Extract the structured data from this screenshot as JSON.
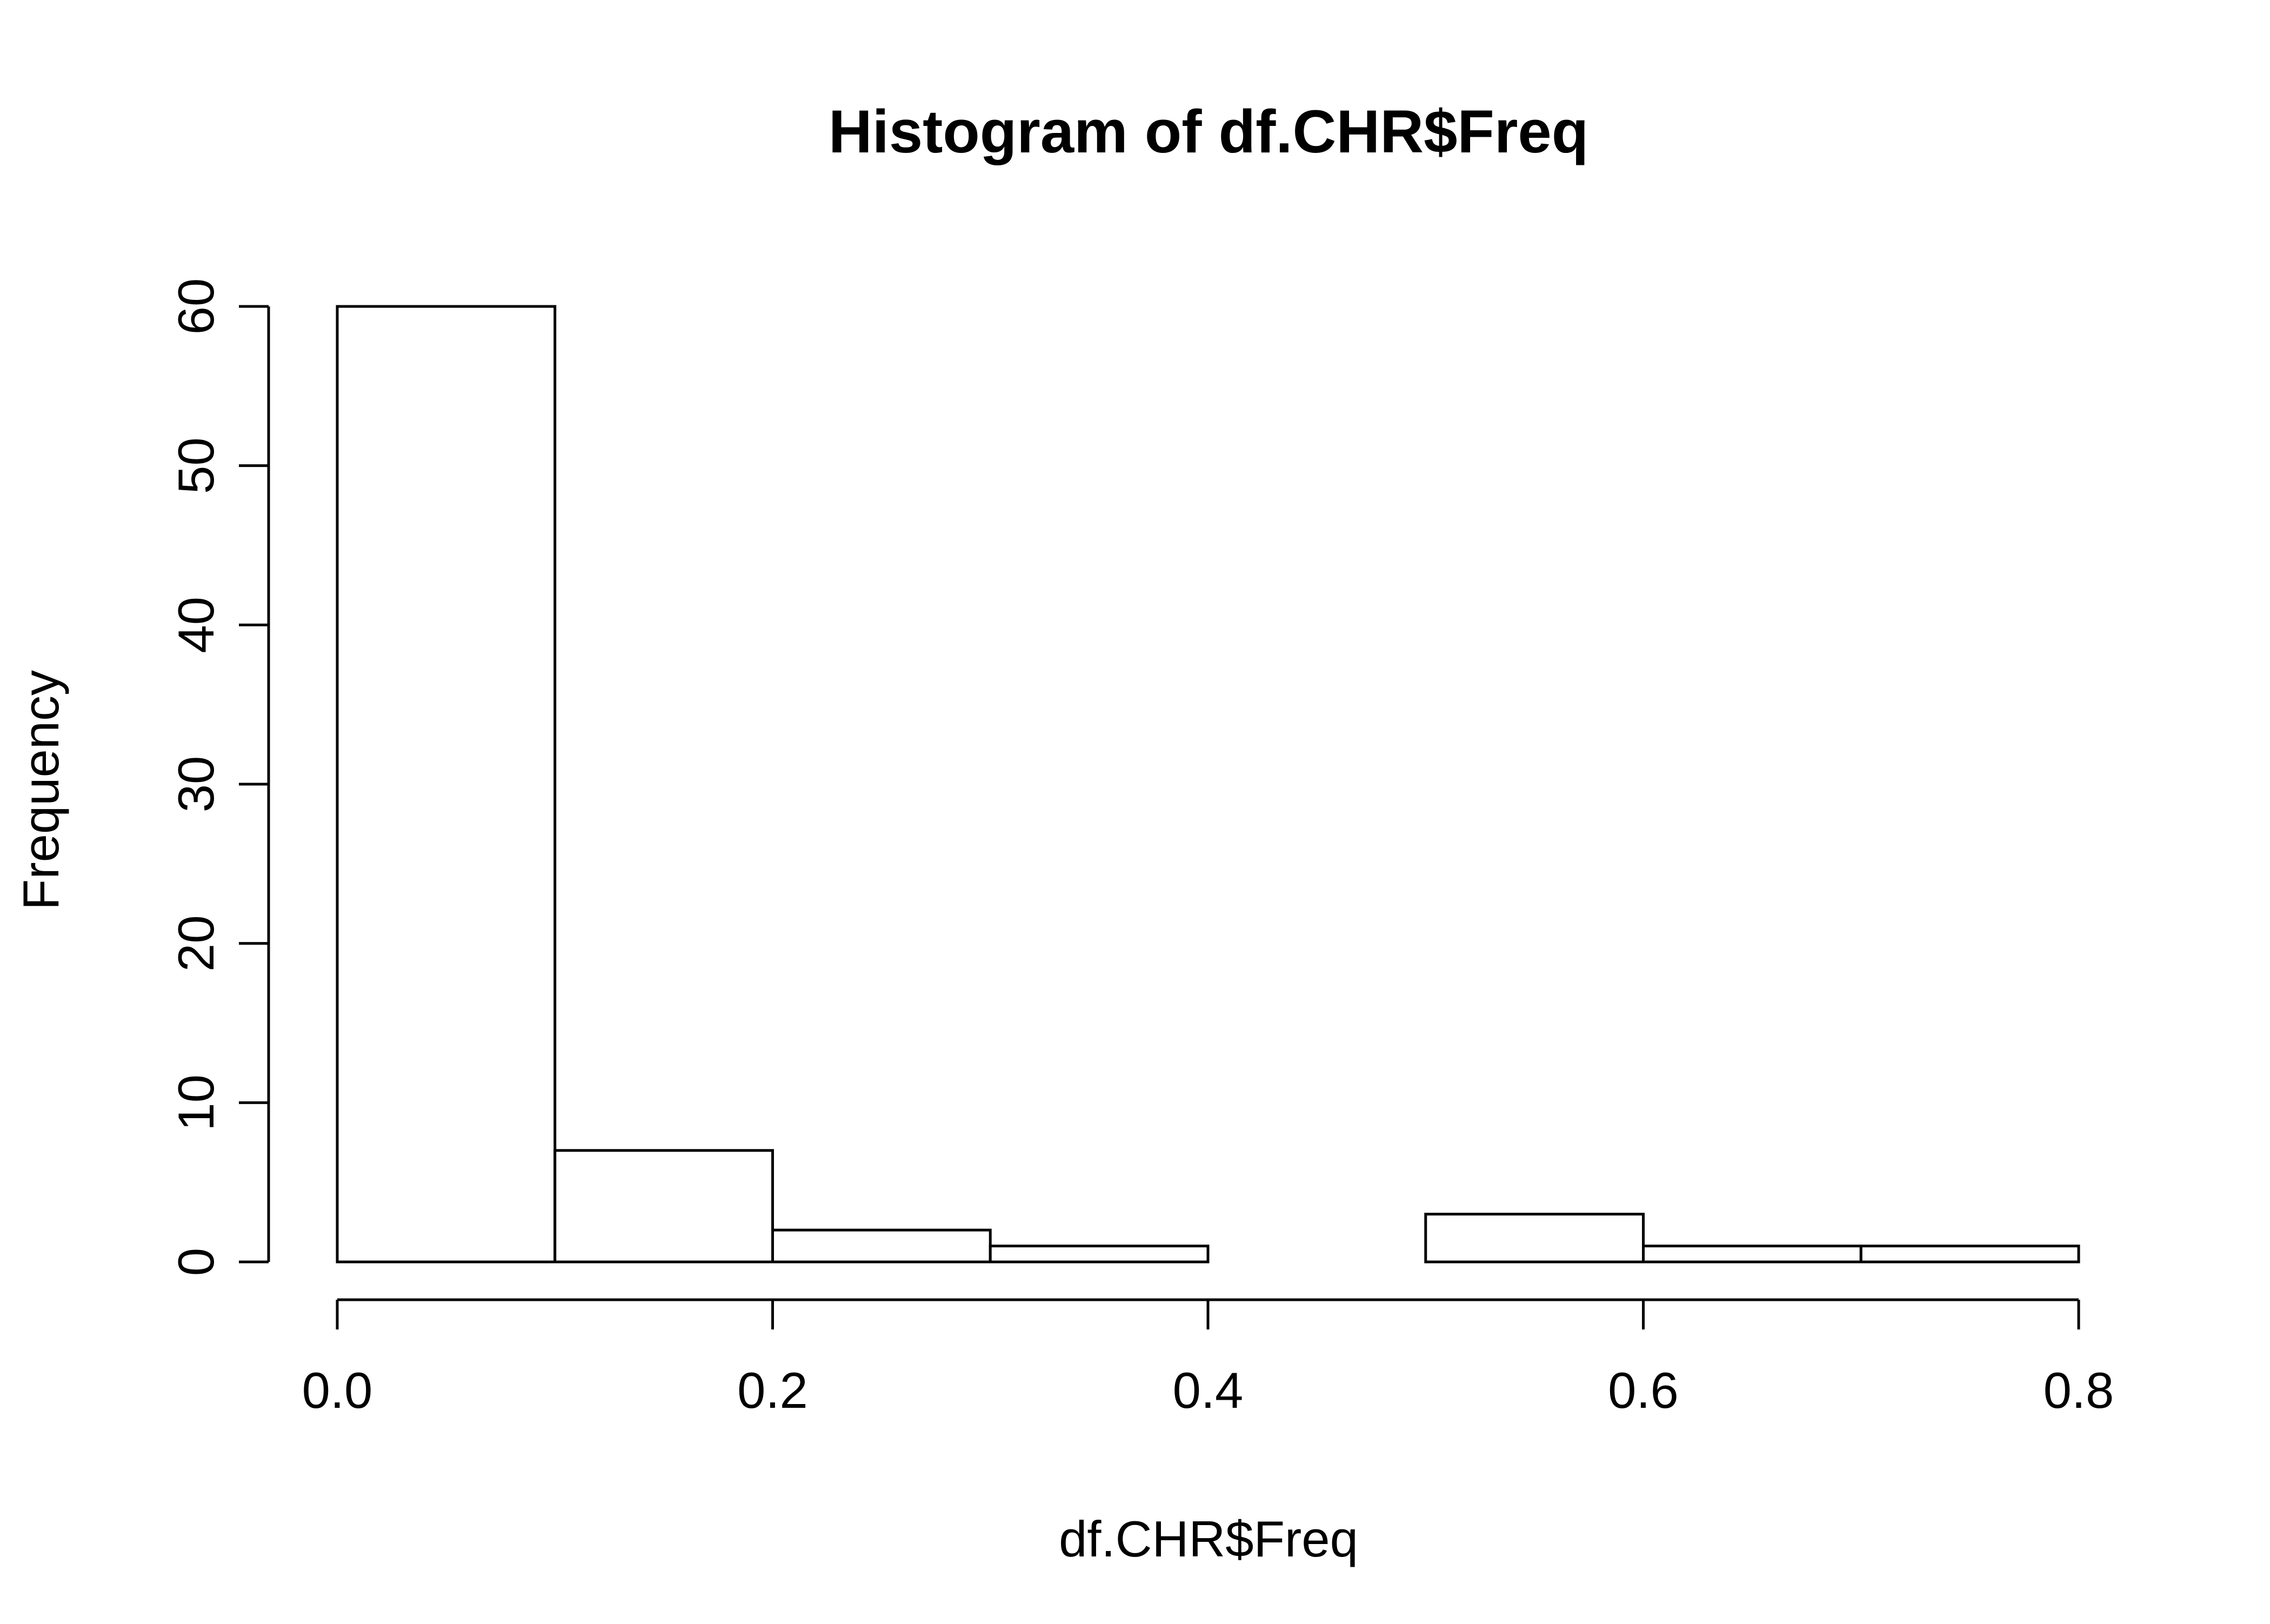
{
  "chart_data": {
    "type": "bar",
    "title": "Histogram of df.CHR$Freq",
    "xlabel": "df.CHR$Freq",
    "ylabel": "Frequency",
    "bins": [
      {
        "from": 0.0,
        "to": 0.1,
        "count": 60
      },
      {
        "from": 0.1,
        "to": 0.2,
        "count": 7
      },
      {
        "from": 0.2,
        "to": 0.3,
        "count": 2
      },
      {
        "from": 0.3,
        "to": 0.4,
        "count": 1
      },
      {
        "from": 0.4,
        "to": 0.5,
        "count": 0
      },
      {
        "from": 0.5,
        "to": 0.6,
        "count": 3
      },
      {
        "from": 0.6,
        "to": 0.7,
        "count": 1
      },
      {
        "from": 0.7,
        "to": 0.8,
        "count": 1
      }
    ],
    "xlim": [
      0.0,
      0.8
    ],
    "ylim": [
      0,
      60
    ],
    "x_ticks": [
      {
        "value": 0.0,
        "label": "0.0"
      },
      {
        "value": 0.2,
        "label": "0.2"
      },
      {
        "value": 0.4,
        "label": "0.4"
      },
      {
        "value": 0.6,
        "label": "0.6"
      },
      {
        "value": 0.8,
        "label": "0.8"
      }
    ],
    "y_ticks": [
      {
        "value": 0,
        "label": "0"
      },
      {
        "value": 10,
        "label": "10"
      },
      {
        "value": 20,
        "label": "20"
      },
      {
        "value": 30,
        "label": "30"
      },
      {
        "value": 40,
        "label": "40"
      },
      {
        "value": 50,
        "label": "50"
      },
      {
        "value": 60,
        "label": "60"
      }
    ],
    "grid": false,
    "bar_fill": "#ffffff",
    "bar_stroke": "#000000"
  }
}
